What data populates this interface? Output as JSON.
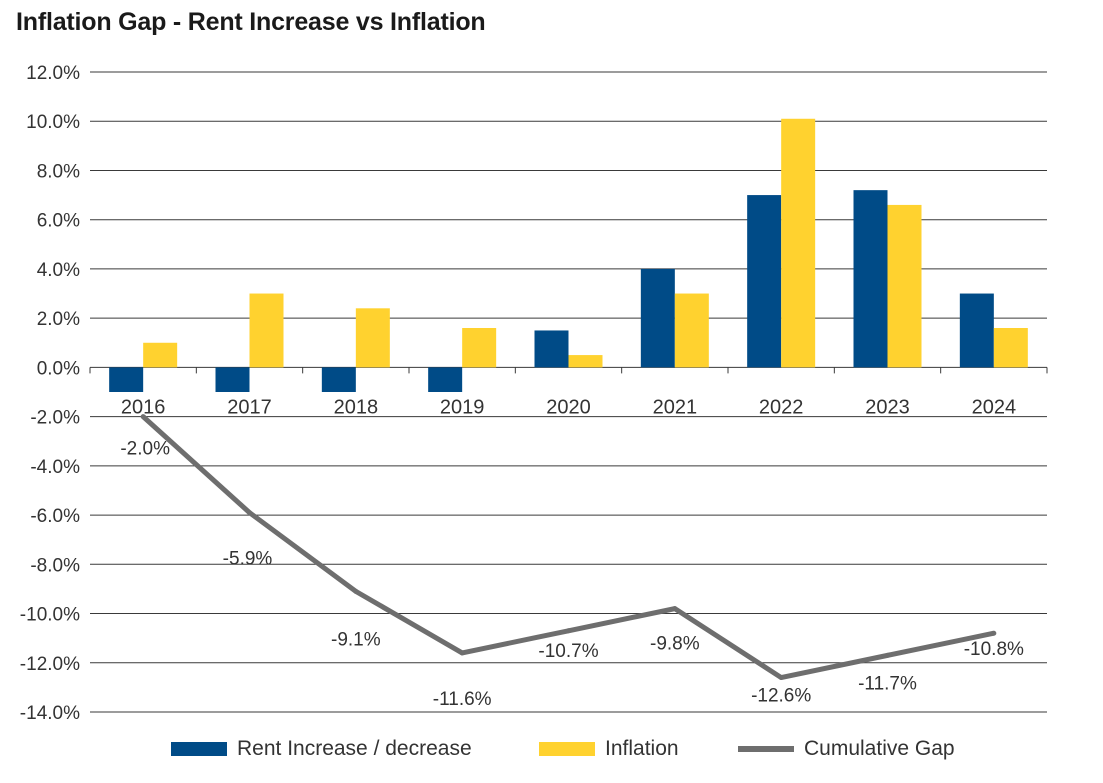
{
  "chart_data": {
    "type": "bar",
    "title": "Inflation Gap - Rent Increase vs Inflation",
    "categories": [
      "2016",
      "2017",
      "2018",
      "2019",
      "2020",
      "2021",
      "2022",
      "2023",
      "2024"
    ],
    "series": [
      {
        "name": "Rent Increase / decrease",
        "kind": "bar",
        "color": "#004B87",
        "values": [
          -1.0,
          -1.0,
          -1.0,
          -1.0,
          1.5,
          4.0,
          7.0,
          7.2,
          3.0
        ]
      },
      {
        "name": "Inflation",
        "kind": "bar",
        "color": "#FFD22F",
        "values": [
          1.0,
          3.0,
          2.4,
          1.6,
          0.5,
          3.0,
          10.1,
          6.6,
          1.6
        ]
      },
      {
        "name": "Cumulative Gap",
        "kind": "line",
        "color": "#6E6E6E",
        "values": [
          -2.0,
          -5.9,
          -9.1,
          -11.6,
          -10.7,
          -9.8,
          -12.6,
          -11.7,
          -10.8
        ],
        "labels": [
          "-2.0%",
          "-5.9%",
          "-9.1%",
          "-11.6%",
          "-10.7%",
          "-9.8%",
          "-12.6%",
          "-11.7%",
          "-10.8%"
        ]
      }
    ],
    "y_ticks": [
      "12.0%",
      "10.0%",
      "8.0%",
      "6.0%",
      "4.0%",
      "2.0%",
      "0.0%",
      "-2.0%",
      "-4.0%",
      "-6.0%",
      "-8.0%",
      "-10.0%",
      "-12.0%",
      "-14.0%"
    ],
    "ylim": [
      -14,
      12
    ],
    "grid": true,
    "legend": "bottom"
  }
}
